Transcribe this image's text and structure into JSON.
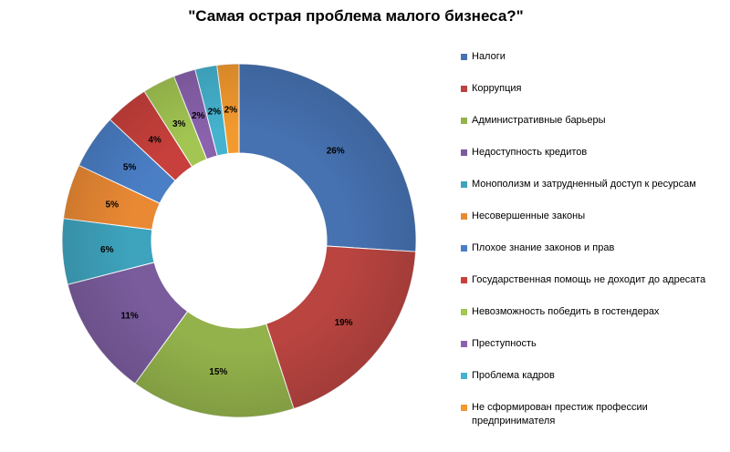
{
  "chart_data": {
    "type": "pie",
    "variant": "donut",
    "title": "\"Самая острая проблема малого бизнеса?\"",
    "legend_position": "right",
    "categories": [
      "Налоги",
      "Коррупция",
      "Административные барьеры",
      "Недоступность кредитов",
      "Монополизм и затрудненный доступ к ресурсам",
      "Несовершенные законы",
      "Плохое знание законов и прав",
      "Государственная помощь не доходит до адресата",
      "Невозможность победить в гостендерах",
      "Преступность",
      "Проблема кадров",
      "Не сформирован престиж профессии предпринимателя"
    ],
    "values": [
      26,
      19,
      15,
      11,
      6,
      5,
      5,
      4,
      3,
      2,
      2,
      2
    ],
    "labels": [
      "26%",
      "19%",
      "15%",
      "11%",
      "6%",
      "5%",
      "5%",
      "4%",
      "3%",
      "2%",
      "2%",
      "2%"
    ],
    "colors": [
      "#4672b1",
      "#b94440",
      "#93b24b",
      "#7a5c9d",
      "#3ea3bd",
      "#ea8934",
      "#4a7ec5",
      "#c8403c",
      "#a3c652",
      "#8a62ad",
      "#45b3cf",
      "#f39a2f"
    ]
  }
}
